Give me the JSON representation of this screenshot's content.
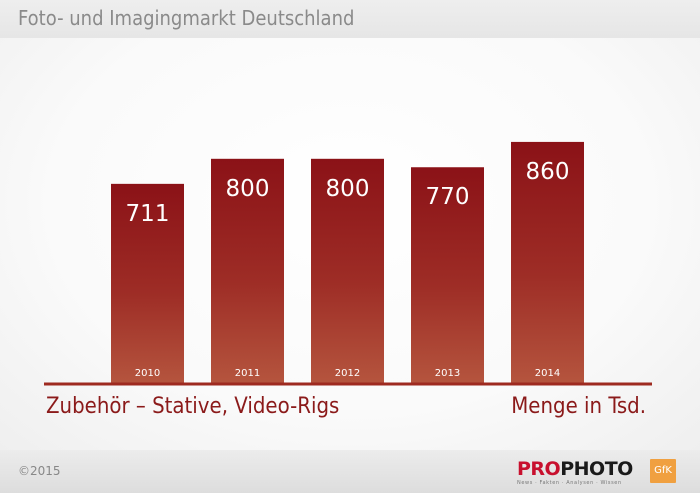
{
  "header": {
    "title": "Foto- und Imagingmarkt Deutschland"
  },
  "chart_data": {
    "type": "bar",
    "categories": [
      "2010",
      "2011",
      "2012",
      "2013",
      "2014"
    ],
    "values": [
      711,
      800,
      800,
      770,
      860
    ],
    "subtitle": "Zubehör – Stative, Video-Rigs",
    "unit_label": "Menge in Tsd.",
    "grid": false,
    "colors": {
      "bar_top": "#8b1217",
      "bar_bottom": "#b5553e",
      "baseline": "#9e2a20",
      "label_text": "#ffffff"
    }
  },
  "footer": {
    "copyright": "©2015",
    "brand_pro": "PRO",
    "brand_photo": "PHOTO",
    "brand_tagline": "News · Fakten · Analysen · Wissen",
    "gfk": "GfK"
  }
}
